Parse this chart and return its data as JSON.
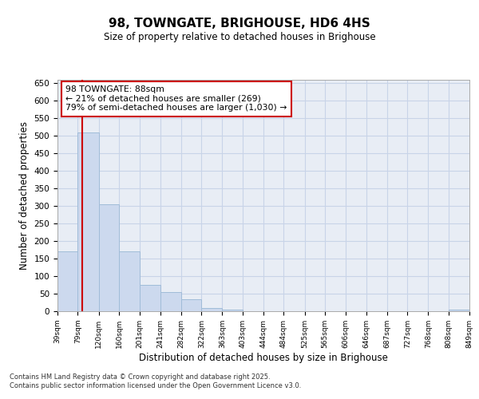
{
  "title": "98, TOWNGATE, BRIGHOUSE, HD6 4HS",
  "subtitle": "Size of property relative to detached houses in Brighouse",
  "xlabel": "Distribution of detached houses by size in Brighouse",
  "ylabel": "Number of detached properties",
  "annotation_line1": "98 TOWNGATE: 88sqm",
  "annotation_line2": "← 21% of detached houses are smaller (269)",
  "annotation_line3": "79% of semi-detached houses are larger (1,030) →",
  "property_size": 88,
  "bar_edge_values": [
    39,
    79,
    120,
    160,
    201,
    241,
    282,
    322,
    363,
    403,
    444,
    484,
    525,
    565,
    606,
    646,
    687,
    727,
    768,
    808,
    849
  ],
  "bar_heights": [
    170,
    510,
    305,
    170,
    75,
    55,
    35,
    10,
    5,
    0,
    0,
    0,
    0,
    0,
    0,
    0,
    0,
    0,
    0,
    5
  ],
  "bar_color": "#ccd9ee",
  "bar_edge_color": "#a0bcd8",
  "vline_color": "#cc0000",
  "vline_x": 88,
  "annotation_box_color": "#cc0000",
  "grid_color": "#c8d4e8",
  "background_color": "#e8edf5",
  "ylim": [
    0,
    660
  ],
  "yticks": [
    0,
    50,
    100,
    150,
    200,
    250,
    300,
    350,
    400,
    450,
    500,
    550,
    600,
    650
  ],
  "footer_line1": "Contains HM Land Registry data © Crown copyright and database right 2025.",
  "footer_line2": "Contains public sector information licensed under the Open Government Licence v3.0."
}
